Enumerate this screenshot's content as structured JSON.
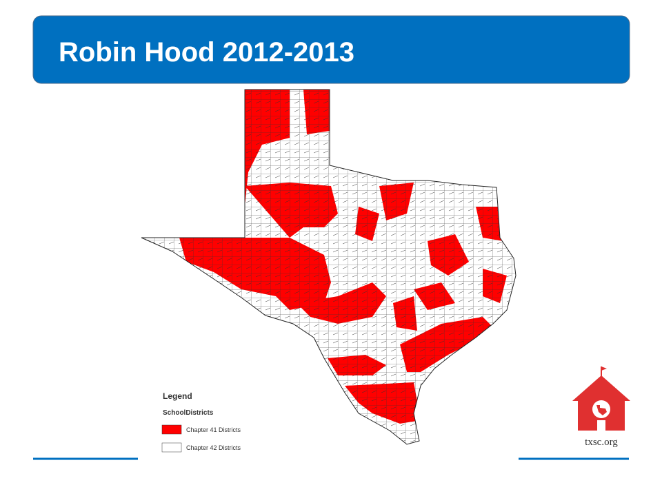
{
  "header": {
    "title": "Robin Hood 2012-2013"
  },
  "legend": {
    "title": "Legend",
    "layer": "SchoolDistricts",
    "items": [
      "Chapter 41 Districts",
      "Chapter 42 Districts"
    ]
  },
  "logo": {
    "text": "txsc.org"
  }
}
